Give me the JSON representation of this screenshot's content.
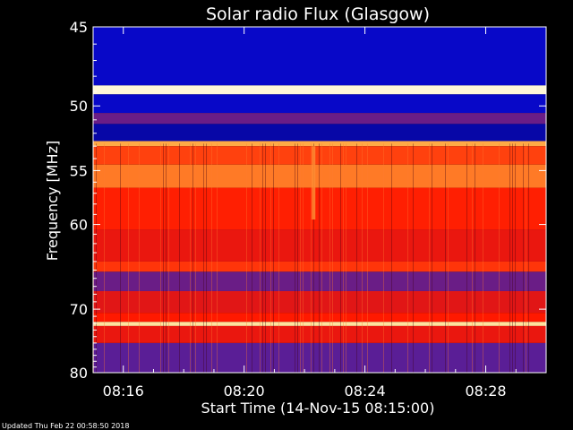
{
  "chart_data": {
    "type": "heatmap",
    "title": "Solar radio Flux (Glasgow)",
    "xlabel": "Start Time (14-Nov-15 08:15:00)",
    "ylabel": "Frequency [MHz]",
    "x_ticks": [
      "08:16",
      "08:20",
      "08:24",
      "08:28"
    ],
    "x_tick_minutes": [
      1,
      5,
      9,
      13
    ],
    "xlim_minutes": [
      0,
      15
    ],
    "y_ticks": [
      45,
      50,
      55,
      60,
      70,
      80
    ],
    "ylim": [
      45,
      80
    ],
    "y_scale": "reciprocal",
    "colormap": "blue-red-yellow-white",
    "bands": [
      {
        "from": 45,
        "to": 48.6,
        "level": 0.12
      },
      {
        "from": 48.6,
        "to": 49.2,
        "level": 0.98
      },
      {
        "from": 49.2,
        "to": 50.5,
        "level": 0.12
      },
      {
        "from": 50.5,
        "to": 51.3,
        "level": 0.3
      },
      {
        "from": 51.3,
        "to": 52.6,
        "level": 0.1
      },
      {
        "from": 52.6,
        "to": 53.0,
        "level": 0.8
      },
      {
        "from": 53.0,
        "to": 54.5,
        "level": 0.62
      },
      {
        "from": 54.5,
        "to": 56.5,
        "level": 0.72
      },
      {
        "from": 56.5,
        "to": 60.5,
        "level": 0.56
      },
      {
        "from": 60.5,
        "to": 64.0,
        "level": 0.5
      },
      {
        "from": 64.0,
        "to": 65.2,
        "level": 0.6
      },
      {
        "from": 65.2,
        "to": 67.6,
        "level": 0.3
      },
      {
        "from": 67.6,
        "to": 70.5,
        "level": 0.48
      },
      {
        "from": 70.5,
        "to": 71.8,
        "level": 0.55
      },
      {
        "from": 71.8,
        "to": 72.4,
        "level": 0.92
      },
      {
        "from": 72.4,
        "to": 75.0,
        "level": 0.5
      },
      {
        "from": 75.0,
        "to": 80.0,
        "level": 0.28
      }
    ],
    "burst": {
      "minute": 7.3,
      "from": 53.0,
      "to": 59.5,
      "level": 0.75
    }
  },
  "footer": {
    "updated": "Updated Thu Feb 22 00:58:50 2018"
  },
  "colors": {
    "background": "#000000",
    "axis": "#ffffff",
    "text": "#ffffff"
  }
}
